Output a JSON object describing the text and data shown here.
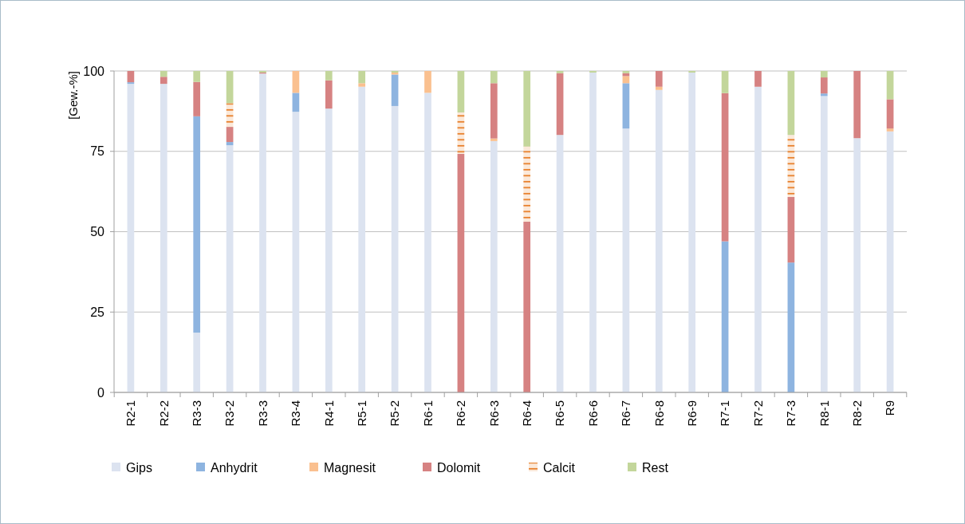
{
  "chart_data": {
    "type": "bar",
    "stacked": true,
    "ylabel": "[Gew.-%]",
    "categories": [
      "R2-1",
      "R2-2",
      "R3-3",
      "R3-2",
      "R3-3",
      "R3-4",
      "R4-1",
      "R5-1",
      "R5-2",
      "R6-1",
      "R6-2",
      "R6-3",
      "R6-4",
      "R6-5",
      "R6-6",
      "R6-7",
      "R6-8",
      "R6-9",
      "R7-1",
      "R7-2",
      "R7-3",
      "R8-1",
      "R8-2",
      "R9"
    ],
    "series": [
      {
        "name": "Gips",
        "color": "#dce3f0",
        "values": [
          96,
          96,
          18.6,
          76.9,
          99.2,
          87.3,
          88.3,
          95.1,
          89.1,
          93.2,
          0,
          78.2,
          0,
          80.1,
          99.5,
          82.1,
          94.1,
          99.5,
          0,
          95.1,
          0,
          92.2,
          79.1,
          81.2
        ]
      },
      {
        "name": "Anhydrit",
        "color": "#8eb4e0",
        "values": [
          0.5,
          0,
          67.3,
          1,
          0,
          5.9,
          0,
          0,
          9.8,
          0,
          0,
          0,
          0,
          0,
          0,
          14.1,
          0,
          0,
          47,
          0,
          40.4,
          0.8,
          0,
          0
        ]
      },
      {
        "name": "Magnesit",
        "color": "#fac08f",
        "values": [
          0,
          0,
          0,
          0,
          0,
          6.8,
          0,
          1.1,
          0.6,
          6.8,
          0,
          0.8,
          0,
          0,
          0,
          2.2,
          1,
          0,
          0,
          0,
          0,
          0,
          0,
          0.9
        ]
      },
      {
        "name": "Dolomit",
        "color": "#d68282",
        "values": [
          3.5,
          2.2,
          10.7,
          4.7,
          0.3,
          0,
          8.8,
          0,
          0,
          0,
          74.2,
          17.2,
          53.1,
          19.2,
          0,
          0.9,
          4.9,
          0,
          46.1,
          4.9,
          20.4,
          5,
          20.9,
          9.1
        ]
      },
      {
        "name": "Calcit",
        "color": "#e46c0a",
        "values": [
          0,
          0,
          0,
          7.4,
          0,
          0,
          0,
          0,
          0,
          0,
          12.9,
          0,
          23.4,
          0,
          0,
          0,
          0,
          0,
          0,
          0,
          19.3,
          0,
          0,
          0
        ]
      },
      {
        "name": "Rest",
        "color": "#c3d69b",
        "values": [
          0,
          1.8,
          3.4,
          10,
          0.5,
          0,
          2.9,
          3.8,
          0.5,
          0,
          12.9,
          3.8,
          23.5,
          0.7,
          0.5,
          0.7,
          0,
          0.5,
          6.9,
          0,
          19.9,
          2,
          0,
          8.8
        ]
      }
    ],
    "ylim": [
      0,
      100
    ],
    "yticks": [
      0,
      25,
      50,
      75,
      100
    ],
    "grid": "y",
    "legend": "bottom"
  }
}
